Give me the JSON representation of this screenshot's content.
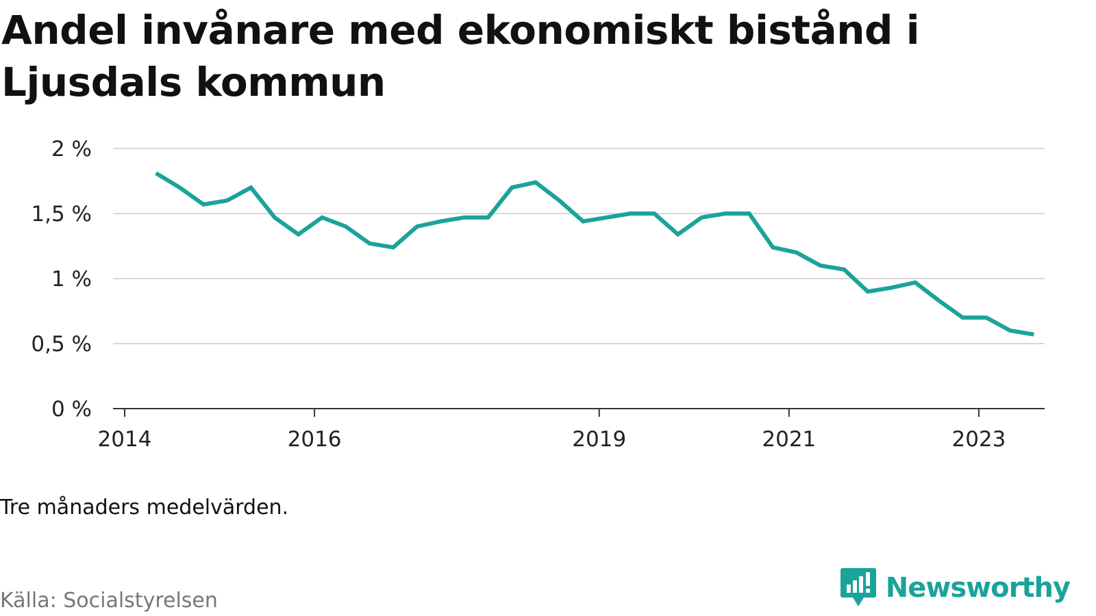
{
  "colors": {
    "line": "#1aa39a",
    "grid": "#d8d8d8",
    "axis": "#333333",
    "brand": "#1aa39a",
    "source": "#777777"
  },
  "source": "Källa: Socialstyrelsen",
  "note": "Tre månaders medelvärden.",
  "brand": {
    "name": "Newsworthy",
    "icon": "newsworthy-logo-icon"
  },
  "chart_data": {
    "type": "line",
    "title": "Andel invånare med ekonomiskt bistånd i Ljusdals kommun",
    "xlabel": "",
    "ylabel": "",
    "ylim": [
      0,
      2
    ],
    "xlim": [
      2014.0,
      2024.0
    ],
    "yticks": [
      0,
      0.5,
      1,
      1.5,
      2
    ],
    "ytick_labels": [
      "0 %",
      "0,5 %",
      "1 %",
      "1,5 %",
      "2 %"
    ],
    "xticks": [
      2014,
      2016,
      2019,
      2021,
      2023
    ],
    "xtick_labels": [
      "2014",
      "2016",
      "2019",
      "2021",
      "2023"
    ],
    "grid": "horizontal",
    "series": [
      {
        "x": [
          2014.33,
          2014.58,
          2014.83,
          2015.08,
          2015.33,
          2015.58,
          2015.83,
          2016.08,
          2016.33,
          2016.58,
          2016.83,
          2017.08,
          2017.33,
          2017.58,
          2017.83,
          2018.08,
          2018.33,
          2018.58,
          2018.83,
          2019.08,
          2019.33,
          2019.58,
          2019.83,
          2020.08,
          2020.33,
          2020.58,
          2020.83,
          2021.08,
          2021.33,
          2021.58,
          2021.83,
          2022.08,
          2022.33,
          2022.58,
          2022.83,
          2023.08,
          2023.33,
          2023.58
        ],
        "values": [
          1.81,
          1.7,
          1.57,
          1.6,
          1.7,
          1.47,
          1.34,
          1.47,
          1.4,
          1.27,
          1.24,
          1.4,
          1.44,
          1.47,
          1.47,
          1.7,
          1.74,
          1.6,
          1.44,
          1.47,
          1.5,
          1.5,
          1.34,
          1.47,
          1.5,
          1.5,
          1.24,
          1.2,
          1.1,
          1.07,
          0.9,
          0.93,
          0.97,
          0.83,
          0.7,
          0.7,
          0.6,
          0.57
        ]
      }
    ]
  }
}
